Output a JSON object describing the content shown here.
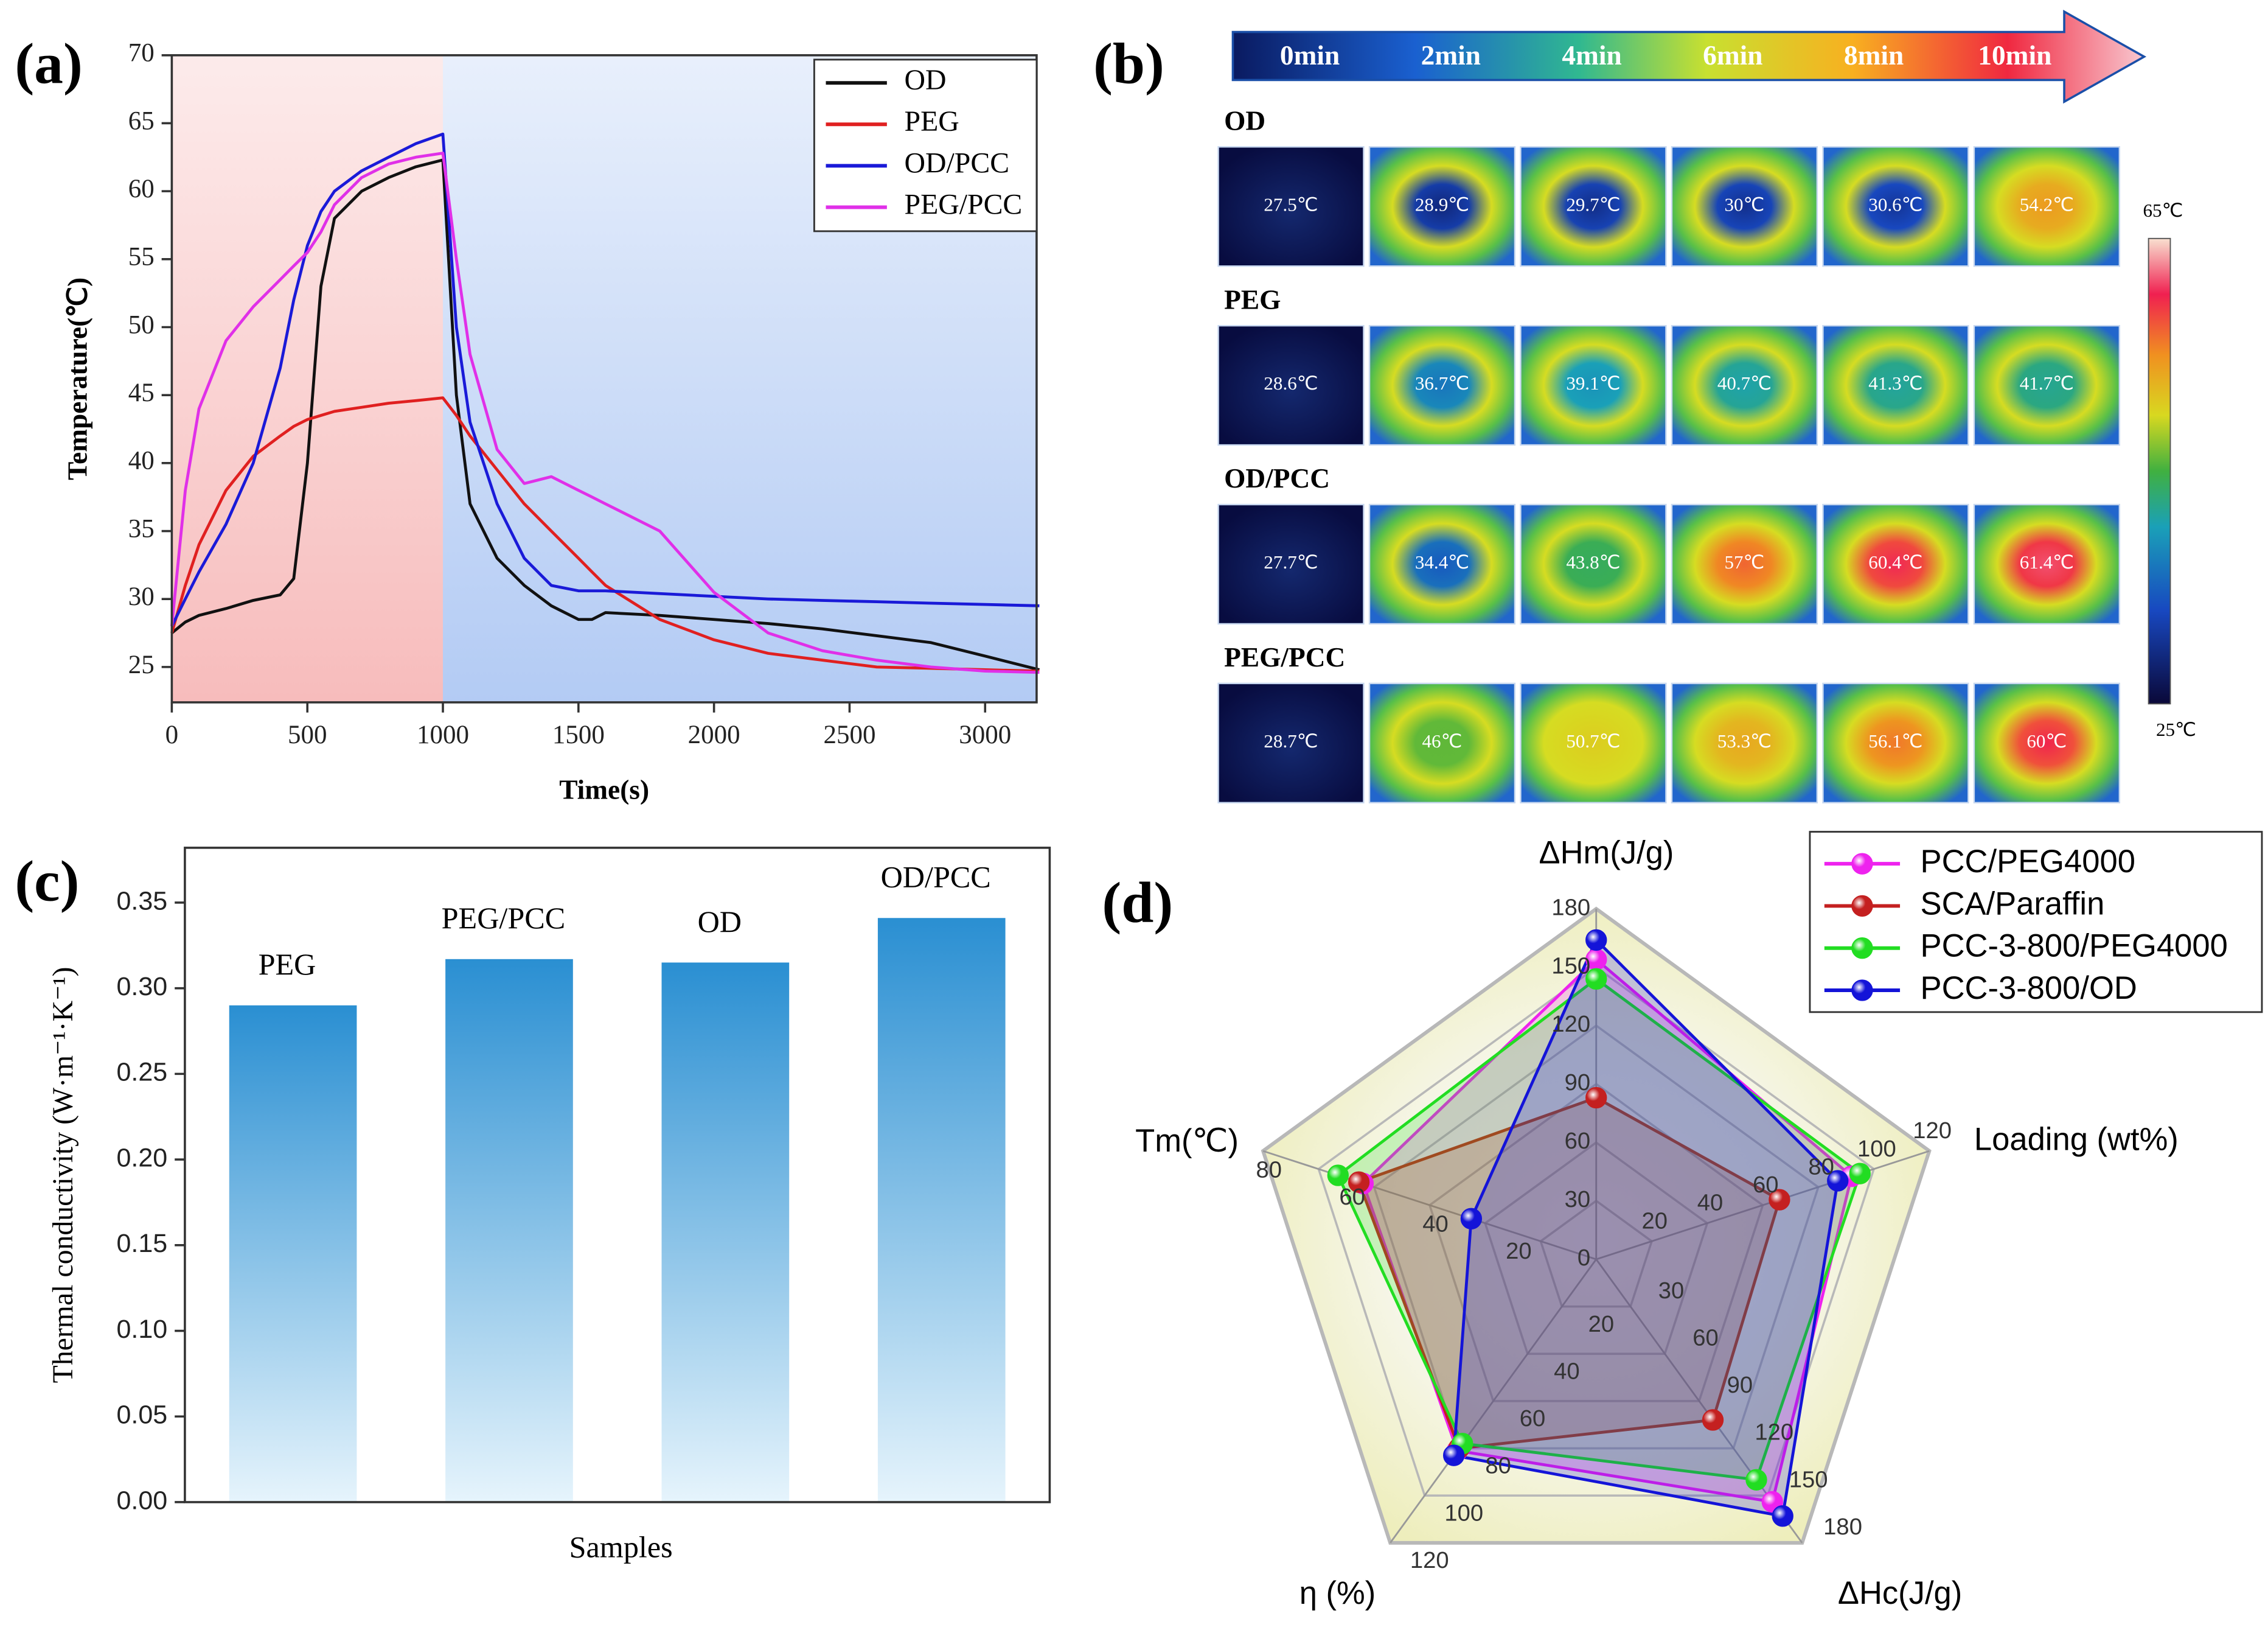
{
  "chart_data": [
    {
      "type": "line",
      "panel_label": "(a)",
      "xlabel": "Time(s)",
      "ylabel": "Temperature(℃)",
      "x": [
        0,
        50,
        100,
        200,
        300,
        400,
        450,
        500,
        550,
        600,
        700,
        800,
        900,
        1000,
        1050,
        1100,
        1200,
        1300,
        1400,
        1500,
        1550,
        1600,
        1800,
        2000,
        2200,
        2400,
        2600,
        2800,
        3000,
        3200
      ],
      "series": [
        {
          "name": "OD",
          "color": "#111111",
          "values": [
            27.5,
            28.3,
            28.8,
            29.3,
            29.9,
            30.3,
            31.5,
            40,
            53,
            58,
            60,
            61,
            61.8,
            62.3,
            45,
            37,
            33,
            31,
            29.5,
            28.5,
            28.5,
            29,
            28.8,
            28.5,
            28.2,
            27.8,
            27.3,
            26.8,
            25.8,
            24.8
          ]
        },
        {
          "name": "PEG",
          "color": "#e02020",
          "values": [
            27.5,
            31,
            34,
            38,
            40.5,
            42,
            42.7,
            43.2,
            43.5,
            43.8,
            44.1,
            44.4,
            44.6,
            44.8,
            43.5,
            42,
            39.5,
            37,
            35,
            33,
            32,
            31,
            28.5,
            27,
            26,
            25.5,
            25,
            24.9,
            24.8,
            24.7
          ]
        },
        {
          "name": "OD/PCC",
          "color": "#1a1ad8",
          "values": [
            28,
            30,
            32,
            35.5,
            40,
            47,
            52,
            56,
            58.5,
            60,
            61.5,
            62.5,
            63.5,
            64.2,
            50,
            43,
            37,
            33,
            31,
            30.6,
            30.6,
            30.6,
            30.4,
            30.2,
            30,
            29.9,
            29.8,
            29.7,
            29.6,
            29.5
          ]
        },
        {
          "name": "PEG/PCC",
          "color": "#e030e8",
          "values": [
            28,
            38,
            44,
            49,
            51.5,
            53.5,
            54.5,
            55.5,
            57,
            59,
            61,
            62,
            62.5,
            62.8,
            55,
            48,
            41,
            38.5,
            39,
            38,
            37.5,
            37,
            35,
            30.5,
            27.5,
            26.2,
            25.5,
            25,
            24.7,
            24.6
          ]
        }
      ],
      "xlim": [
        0,
        3190
      ],
      "ylim": [
        22.4,
        70
      ],
      "xticks": [
        0,
        500,
        1000,
        1500,
        2000,
        2500,
        3000
      ],
      "yticks": [
        25,
        30,
        35,
        40,
        45,
        50,
        55,
        60,
        65,
        70
      ],
      "shading": [
        {
          "x": [
            0,
            1000
          ],
          "color": "#f7bcbc"
        },
        {
          "x": [
            1000,
            3190
          ],
          "color": "#b3cbf4"
        }
      ],
      "legend": "upper right"
    },
    {
      "type": "bar",
      "panel_label": "(c)",
      "xlabel": "Samples",
      "ylabel": "Thermal conductivity (W·m⁻¹·K⁻¹)",
      "categories": [
        "PEG",
        "PEG/PCC",
        "OD",
        "OD/PCC"
      ],
      "values": [
        0.29,
        0.317,
        0.315,
        0.341
      ],
      "color": "#2a8fd2",
      "gradient_to": "#e6f4fc",
      "ylim": [
        0,
        0.382
      ],
      "yticks": [
        {
          "value": 0,
          "label": "0.00"
        },
        0.05,
        {
          "value": 0.1,
          "label": "0.10"
        },
        0.15,
        {
          "value": 0.2,
          "label": "0.20"
        },
        0.25,
        {
          "value": 0.3,
          "label": "0.30"
        },
        0.35
      ]
    },
    {
      "type": "radar",
      "panel_label": "(d)",
      "axes": [
        {
          "name": "ΔHm(J/g)",
          "lim": [
            0,
            180
          ],
          "ticks": [
            0,
            30,
            60,
            90,
            120,
            150,
            180
          ]
        },
        {
          "name": "Loading (wt%)",
          "lim": [
            0,
            120
          ],
          "ticks": [
            20,
            40,
            60,
            80,
            100,
            120
          ]
        },
        {
          "name": "ΔHc(J/g)",
          "lim": [
            0,
            180
          ],
          "ticks": [
            30,
            60,
            90,
            120,
            150,
            180
          ]
        },
        {
          "name": "η (%)",
          "lim": [
            0,
            120
          ],
          "ticks": [
            20,
            40,
            60,
            80,
            100,
            120
          ]
        },
        {
          "name": "Tm(℃)",
          "lim": [
            0,
            80
          ],
          "ticks": [
            20,
            40,
            60,
            80
          ]
        }
      ],
      "series": [
        {
          "name": "PCC/PEG4000",
          "color": "#ee22ee",
          "values": [
            154,
            92,
            154,
            81,
            56
          ]
        },
        {
          "name": "SCA/Paraffin",
          "color": "#c42020",
          "values": [
            83,
            66,
            102,
            80,
            57
          ]
        },
        {
          "name": "PCC-3-800/PEG4000",
          "color": "#22dd22",
          "values": [
            144,
            95,
            140,
            78,
            62
          ]
        },
        {
          "name": "PCC-3-800/OD",
          "color": "#1414d8",
          "values": [
            164,
            87,
            163,
            83,
            30
          ]
        }
      ],
      "legend": "upper right"
    }
  ],
  "thermal_panel": {
    "panel_label": "(b)",
    "time_labels": [
      "0min",
      "2min",
      "4min",
      "6min",
      "8min",
      "10min"
    ],
    "rows": [
      {
        "name": "OD",
        "temps": [
          "27.5℃",
          "28.9℃",
          "29.7℃",
          "30℃",
          "30.6℃",
          "54.2℃"
        ]
      },
      {
        "name": "PEG",
        "temps": [
          "28.6℃",
          "36.7℃",
          "39.1℃",
          "40.7℃",
          "41.3℃",
          "41.7℃"
        ]
      },
      {
        "name": "OD/PCC",
        "temps": [
          "27.7℃",
          "34.4℃",
          "43.8℃",
          "57℃",
          "60.4℃",
          "61.4℃"
        ]
      },
      {
        "name": "PEG/PCC",
        "temps": [
          "28.7℃",
          "46℃",
          "50.7℃",
          "53.3℃",
          "56.1℃",
          "60℃"
        ]
      }
    ],
    "colorbar": {
      "max": "65℃",
      "min": "25℃"
    }
  }
}
